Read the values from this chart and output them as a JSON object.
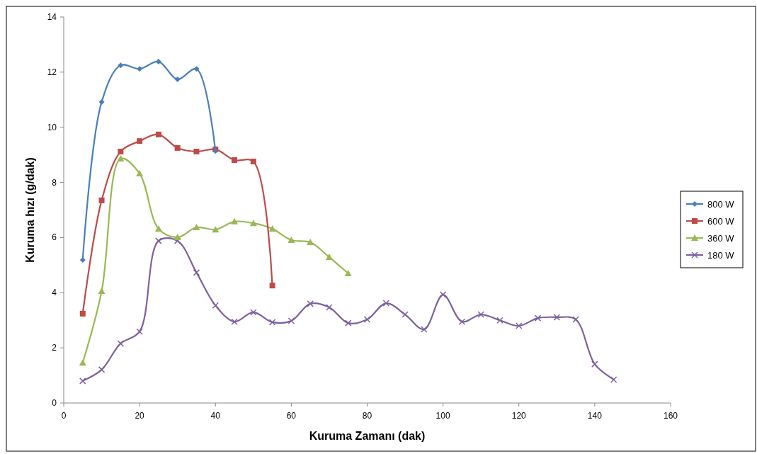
{
  "chart_data": {
    "type": "line",
    "xlabel": "Kuruma Zamanı (dak)",
    "ylabel": "Kuruma hızı (g/dak)",
    "xlim": [
      0,
      160
    ],
    "xticks": [
      0,
      20,
      40,
      60,
      80,
      100,
      120,
      140,
      160
    ],
    "ylim": [
      0,
      14
    ],
    "yticks": [
      0,
      2,
      4,
      6,
      8,
      10,
      12,
      14
    ],
    "grid": false,
    "legend": "right",
    "series": [
      {
        "name": "800 W",
        "color": "#4a7ebb",
        "marker": "diamond",
        "x": [
          5,
          10,
          15,
          20,
          25,
          30,
          35,
          40
        ],
        "values": [
          5.19,
          10.92,
          12.25,
          12.12,
          12.38,
          11.74,
          12.12,
          9.14
        ]
      },
      {
        "name": "600 W",
        "color": "#be4b48",
        "marker": "square",
        "x": [
          5,
          10,
          15,
          20,
          25,
          30,
          35,
          40,
          45,
          50,
          55
        ],
        "values": [
          3.24,
          7.35,
          9.12,
          9.5,
          9.74,
          9.25,
          9.12,
          9.2,
          8.81,
          8.76,
          4.26
        ]
      },
      {
        "name": "360 W",
        "color": "#98b954",
        "marker": "triangle",
        "x": [
          5,
          10,
          15,
          20,
          25,
          30,
          35,
          40,
          45,
          50,
          55,
          60,
          65,
          70,
          75
        ],
        "values": [
          1.46,
          4.06,
          8.86,
          8.32,
          6.32,
          6.01,
          6.37,
          6.29,
          6.58,
          6.52,
          6.32,
          5.91,
          5.83,
          5.29,
          4.7
        ]
      },
      {
        "name": "180 W",
        "color": "#7d60a0",
        "marker": "cross",
        "x": [
          5,
          10,
          15,
          20,
          25,
          30,
          35,
          40,
          45,
          50,
          55,
          60,
          65,
          70,
          75,
          80,
          85,
          90,
          95,
          100,
          105,
          110,
          115,
          120,
          125,
          130,
          135,
          140,
          145
        ],
        "values": [
          0.8,
          1.21,
          2.16,
          2.59,
          5.88,
          5.88,
          4.73,
          3.54,
          2.95,
          3.29,
          2.93,
          2.98,
          3.6,
          3.47,
          2.9,
          3.03,
          3.62,
          3.21,
          2.67,
          3.93,
          2.95,
          3.21,
          3,
          2.8,
          3.08,
          3.11,
          3.03,
          1.41,
          0.85
        ]
      }
    ]
  }
}
